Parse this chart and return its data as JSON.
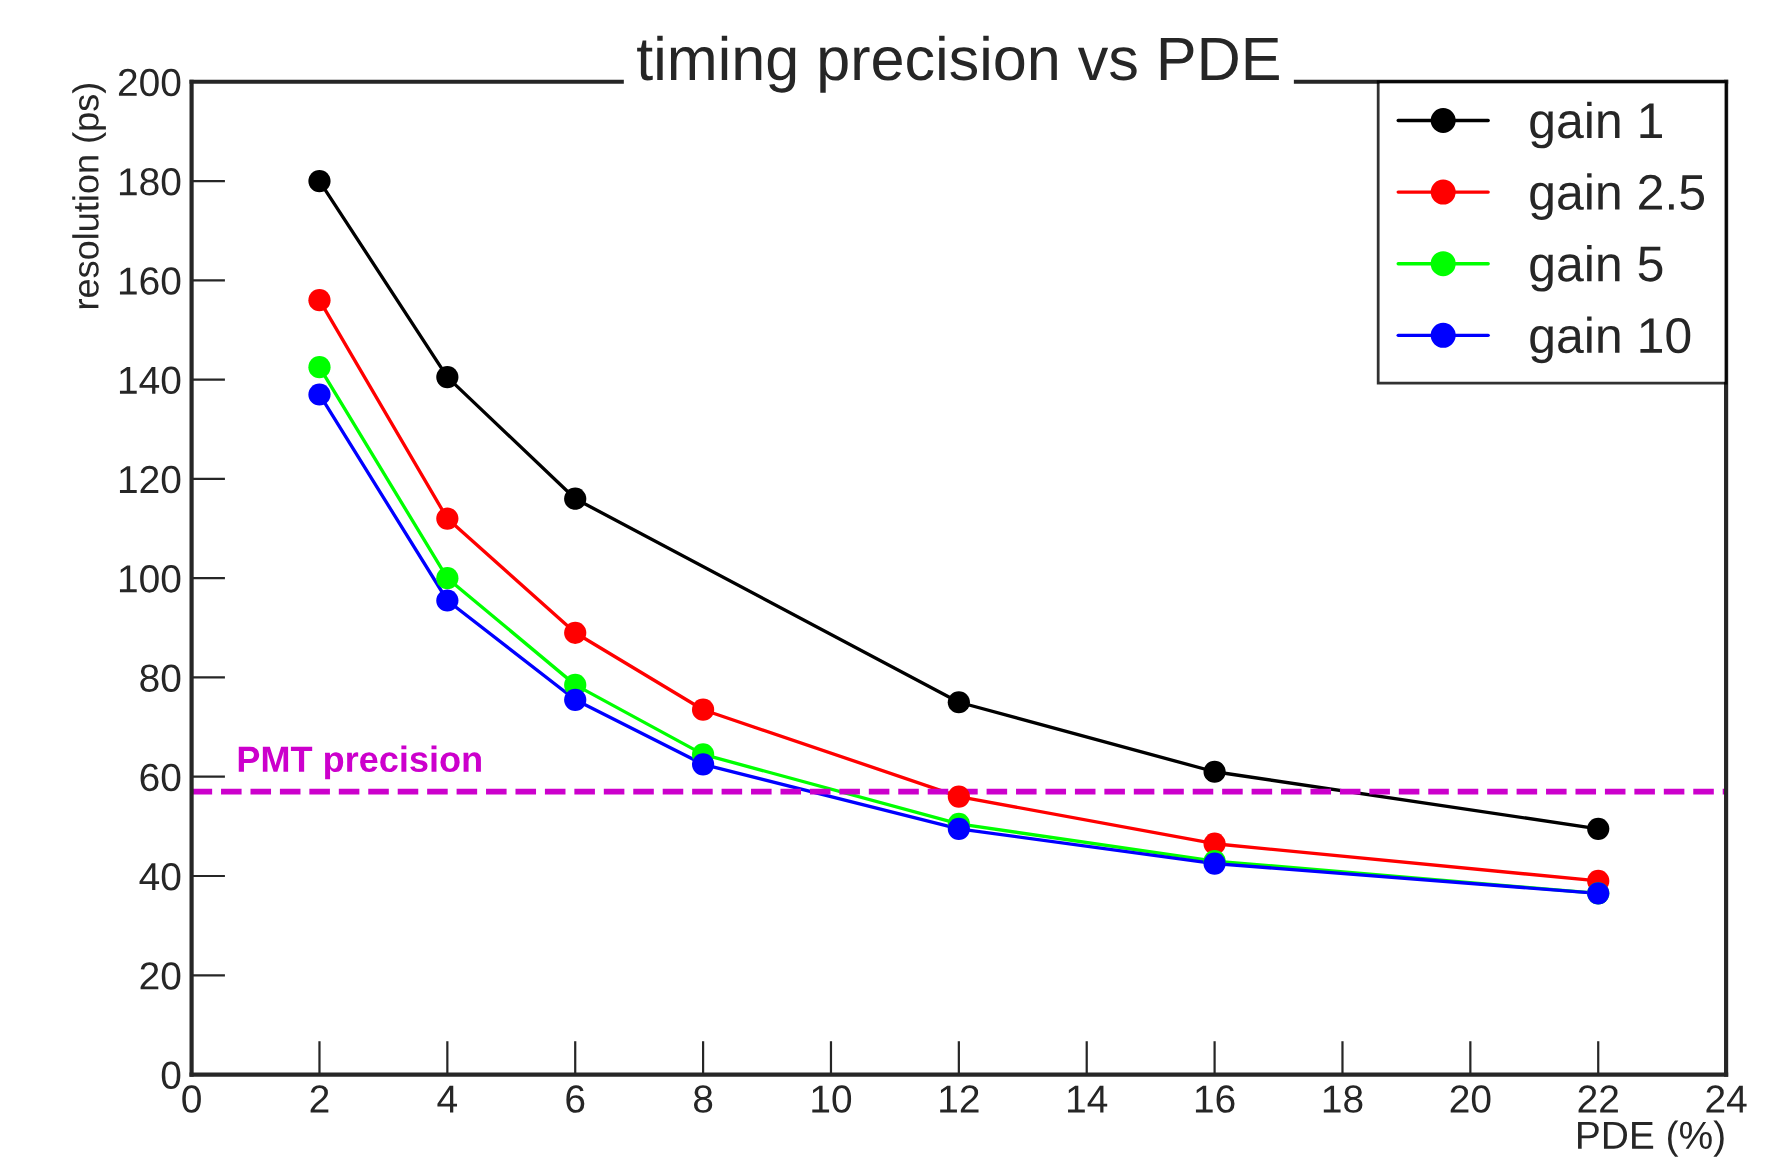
{
  "chart_data": {
    "type": "line",
    "title": "timing precision vs PDE",
    "xlabel": "PDE (%)",
    "ylabel": "resolution (ps)",
    "xlim": [
      0,
      24
    ],
    "xticks": [
      0,
      2,
      4,
      6,
      8,
      10,
      12,
      14,
      16,
      18,
      20,
      22,
      24
    ],
    "ylim": [
      0,
      200
    ],
    "yticks": [
      0,
      20,
      40,
      60,
      80,
      100,
      120,
      140,
      160,
      180,
      200
    ],
    "series": [
      {
        "name": "gain 1",
        "color": "#000000",
        "x": [
          2,
          4,
          6,
          12,
          16,
          22
        ],
        "values": [
          180,
          140.5,
          116,
          75,
          61,
          49.5
        ]
      },
      {
        "name": "gain 2.5",
        "color": "#ff0000",
        "x": [
          2,
          4,
          6,
          8,
          12,
          16,
          22
        ],
        "values": [
          156,
          112,
          89,
          73.5,
          56,
          46.5,
          39
        ]
      },
      {
        "name": "gain 5",
        "color": "#00ff00",
        "x": [
          2,
          4,
          6,
          8,
          12,
          16,
          22
        ],
        "values": [
          142.5,
          100,
          78.5,
          64.5,
          50.5,
          43,
          36.5
        ]
      },
      {
        "name": "gain 10",
        "color": "#0000ff",
        "x": [
          2,
          4,
          6,
          8,
          12,
          16,
          22
        ],
        "values": [
          137,
          95.5,
          75.5,
          62.5,
          49.5,
          42.5,
          36.5
        ]
      }
    ],
    "ref_lines": [
      {
        "axis": "y",
        "value": 57,
        "label": "PMT precision",
        "color": "#cc00cc",
        "line_style": "dashed"
      }
    ],
    "marker": "circle",
    "line_style": "solid",
    "grid": false,
    "legend": "top right"
  }
}
